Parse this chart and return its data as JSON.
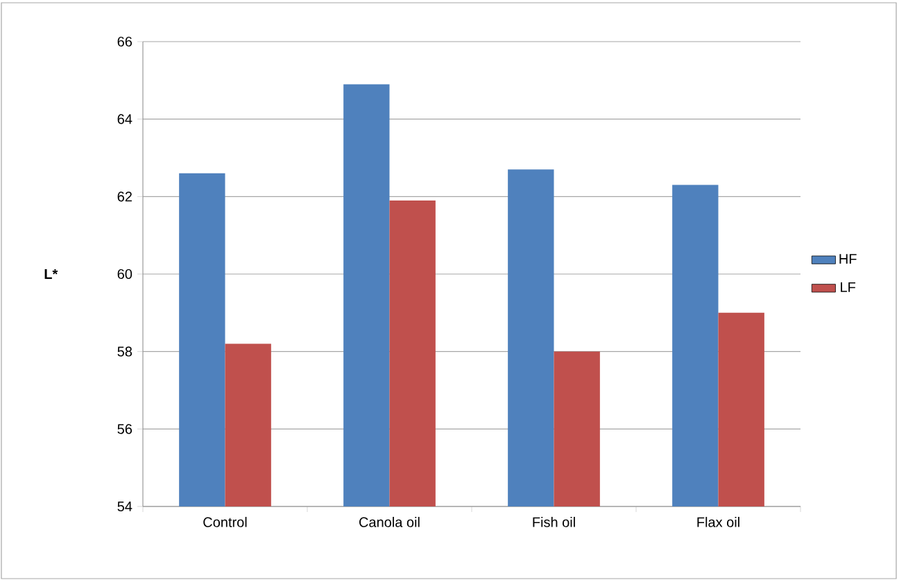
{
  "chart_data": {
    "type": "bar",
    "ylabel": "L*",
    "categories": [
      "Control",
      "Canola oil",
      "Fish oil",
      "Flax oil"
    ],
    "series": [
      {
        "name": "HF",
        "color": "#4f81bd",
        "values": [
          62.6,
          64.9,
          62.7,
          62.3
        ]
      },
      {
        "name": "LF",
        "color": "#c0504d",
        "values": [
          58.2,
          61.9,
          58.0,
          59.0
        ]
      }
    ],
    "ylim": [
      54,
      66
    ],
    "yticks": [
      54,
      56,
      58,
      60,
      62,
      64,
      66
    ],
    "grid": "y",
    "legend": "right"
  }
}
